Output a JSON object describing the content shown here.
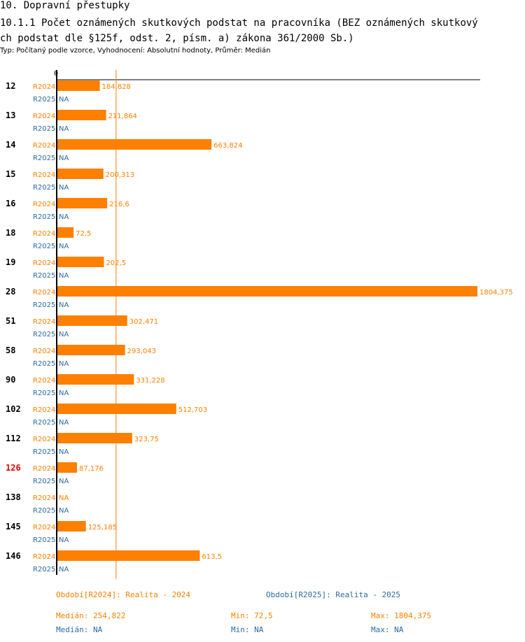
{
  "header": {
    "section": "10. Dopravní přestupky",
    "title_line1": "10.1.1 Počet oznámených skutkových podstat na pracovníka (BEZ oznámených skutkový",
    "title_line2": "ch podstat dle §125f, odst. 2, písm. a) zákona 361/2000 Sb.)",
    "subtitle": "Typ: Počítaný podle vzorce, Vyhodnocení: Absolutní hodnoty, Průměr: Medián"
  },
  "colors": {
    "r2024": "#ff7f00",
    "r2025": "#2c6a9e",
    "highlight": "#ee0000",
    "axis": "#000000"
  },
  "chart_data": {
    "type": "bar",
    "orientation": "horizontal",
    "axis_zero_label": "0",
    "xlim": [
      0,
      1804.375
    ],
    "categories": [
      "12",
      "13",
      "14",
      "15",
      "16",
      "18",
      "19",
      "28",
      "51",
      "58",
      "90",
      "102",
      "112",
      "126",
      "138",
      "145",
      "146"
    ],
    "highlighted_category": "126",
    "series": [
      {
        "name": "R2024",
        "values": [
          184.828,
          211.864,
          663.824,
          200.313,
          216.6,
          72.5,
          202.5,
          1804.375,
          302.471,
          293.043,
          331.228,
          512.703,
          323.75,
          87.176,
          null,
          125.185,
          613.5
        ],
        "labels": [
          "184,828",
          "211,864",
          "663,824",
          "200,313",
          "216,6",
          "72,5",
          "202,5",
          "1804,375",
          "302,471",
          "293,043",
          "331,228",
          "512,703",
          "323,75",
          "87,176",
          "NA",
          "125,185",
          "613,5"
        ]
      },
      {
        "name": "R2025",
        "values": [
          null,
          null,
          null,
          null,
          null,
          null,
          null,
          null,
          null,
          null,
          null,
          null,
          null,
          null,
          null,
          null,
          null
        ],
        "labels": [
          "NA",
          "NA",
          "NA",
          "NA",
          "NA",
          "NA",
          "NA",
          "NA",
          "NA",
          "NA",
          "NA",
          "NA",
          "NA",
          "NA",
          "NA",
          "NA",
          "NA"
        ]
      }
    ],
    "median_line_value": 254.822
  },
  "legend": {
    "period_2024": "Období[R2024]: Realita - 2024",
    "period_2025": "Období[R2025]: Realita - 2025",
    "median_2024": "Medián: 254,822",
    "min_2024": "Min: 72,5",
    "max_2024": "Max: 1804,375",
    "median_2025": "Medián: NA",
    "min_2025": "Min: NA",
    "max_2025": "Max: NA"
  }
}
